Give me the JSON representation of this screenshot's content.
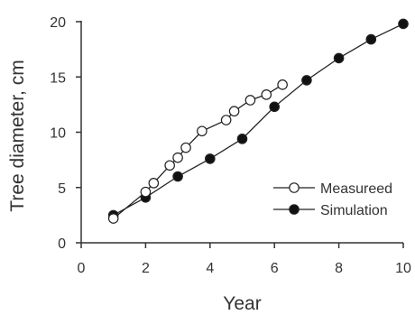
{
  "chart_data": {
    "type": "line",
    "xlabel": "Year",
    "ylabel": "Tree diameter, cm",
    "xlim": [
      0,
      10
    ],
    "ylim": [
      0,
      20
    ],
    "xticks": [
      "0",
      "2",
      "4",
      "6",
      "8",
      "10"
    ],
    "yticks": [
      "0",
      "5",
      "10",
      "15",
      "20"
    ],
    "grid": false,
    "legend_position": "bottom-right",
    "series": [
      {
        "name": "Measureed",
        "marker": "open-circle",
        "x": [
          1,
          2,
          2.25,
          2.75,
          3,
          3.25,
          3.75,
          4.5,
          4.75,
          5.25,
          5.75,
          6.25
        ],
        "y": [
          2.2,
          4.6,
          5.4,
          7.0,
          7.7,
          8.6,
          10.1,
          11.1,
          11.9,
          12.9,
          13.4,
          14.3
        ]
      },
      {
        "name": "Simulation",
        "marker": "filled-circle",
        "x": [
          1,
          2,
          3,
          4,
          5,
          6,
          7,
          8,
          9,
          10
        ],
        "y": [
          2.5,
          4.1,
          6.0,
          7.6,
          9.4,
          12.3,
          14.7,
          16.7,
          18.4,
          19.8
        ]
      }
    ],
    "colors": {
      "line": "#222222",
      "axis": "#333333",
      "open_fill": "#ffffff",
      "filled_fill": "#111111"
    }
  }
}
